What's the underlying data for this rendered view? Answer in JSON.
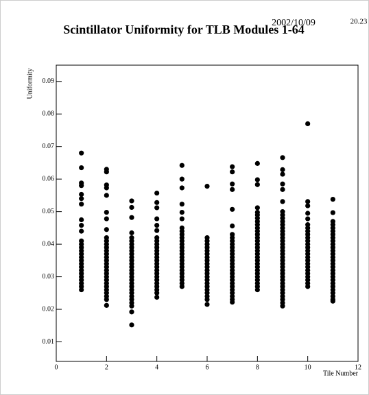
{
  "chart_data": {
    "type": "scatter",
    "title": "Scintillator Uniformity for TLB Modules 1-64",
    "date": "2002/10/09",
    "time": "20.23",
    "y_label": "Uniformity",
    "x_label": "Tile Number",
    "color": "#000000",
    "xlim": [
      0,
      12
    ],
    "xticks": [
      0,
      2,
      4,
      6,
      8,
      10,
      12
    ],
    "ylim": [
      0.004,
      0.095
    ],
    "yticks": [
      0.01,
      0.02,
      0.03,
      0.04,
      0.05,
      0.06,
      0.07,
      0.08,
      0.09
    ],
    "series": [
      {
        "x": 1,
        "values": [
          0.068,
          0.0635,
          0.0588,
          0.058,
          0.0553,
          0.054,
          0.0523,
          0.0475,
          0.0458,
          0.044,
          0.041,
          0.04,
          0.039,
          0.038,
          0.037,
          0.036,
          0.035,
          0.034,
          0.033,
          0.032,
          0.031,
          0.03,
          0.029,
          0.028,
          0.027,
          0.026
        ]
      },
      {
        "x": 2,
        "values": [
          0.063,
          0.0622,
          0.0582,
          0.0573,
          0.055,
          0.0498,
          0.0478,
          0.0445,
          0.042,
          0.041,
          0.04,
          0.039,
          0.038,
          0.037,
          0.036,
          0.035,
          0.034,
          0.033,
          0.032,
          0.031,
          0.03,
          0.029,
          0.028,
          0.027,
          0.026,
          0.025,
          0.024,
          0.023,
          0.0212
        ]
      },
      {
        "x": 3,
        "values": [
          0.0533,
          0.0513,
          0.0482,
          0.0435,
          0.042,
          0.041,
          0.04,
          0.039,
          0.038,
          0.037,
          0.036,
          0.035,
          0.034,
          0.033,
          0.032,
          0.031,
          0.03,
          0.029,
          0.028,
          0.027,
          0.026,
          0.025,
          0.024,
          0.023,
          0.022,
          0.021,
          0.0192,
          0.0152
        ]
      },
      {
        "x": 4,
        "values": [
          0.0557,
          0.0528,
          0.0512,
          0.0478,
          0.0458,
          0.0442,
          0.042,
          0.041,
          0.04,
          0.039,
          0.038,
          0.037,
          0.036,
          0.035,
          0.034,
          0.033,
          0.032,
          0.031,
          0.03,
          0.029,
          0.028,
          0.027,
          0.026,
          0.025,
          0.0237
        ]
      },
      {
        "x": 5,
        "values": [
          0.0642,
          0.06,
          0.0573,
          0.0523,
          0.0498,
          0.0478,
          0.045,
          0.044,
          0.043,
          0.042,
          0.041,
          0.04,
          0.039,
          0.038,
          0.037,
          0.036,
          0.035,
          0.034,
          0.033,
          0.032,
          0.031,
          0.03,
          0.029,
          0.028,
          0.027
        ]
      },
      {
        "x": 6,
        "values": [
          0.0578,
          0.042,
          0.041,
          0.04,
          0.039,
          0.038,
          0.037,
          0.036,
          0.035,
          0.034,
          0.033,
          0.032,
          0.031,
          0.03,
          0.029,
          0.028,
          0.027,
          0.026,
          0.025,
          0.024,
          0.023,
          0.0215
        ]
      },
      {
        "x": 7,
        "values": [
          0.0638,
          0.0622,
          0.0585,
          0.0568,
          0.0507,
          0.0456,
          0.043,
          0.042,
          0.041,
          0.04,
          0.039,
          0.038,
          0.037,
          0.036,
          0.035,
          0.034,
          0.033,
          0.032,
          0.031,
          0.03,
          0.029,
          0.028,
          0.027,
          0.026,
          0.025,
          0.024,
          0.023,
          0.0222
        ]
      },
      {
        "x": 8,
        "values": [
          0.0648,
          0.0598,
          0.0583,
          0.0512,
          0.0498,
          0.049,
          0.048,
          0.047,
          0.046,
          0.045,
          0.044,
          0.043,
          0.042,
          0.041,
          0.04,
          0.039,
          0.038,
          0.037,
          0.036,
          0.035,
          0.034,
          0.033,
          0.032,
          0.031,
          0.03,
          0.029,
          0.028,
          0.027,
          0.026
        ]
      },
      {
        "x": 9,
        "values": [
          0.0666,
          0.0629,
          0.0615,
          0.0585,
          0.0568,
          0.0531,
          0.05,
          0.049,
          0.048,
          0.047,
          0.046,
          0.045,
          0.044,
          0.043,
          0.042,
          0.041,
          0.04,
          0.039,
          0.038,
          0.037,
          0.036,
          0.035,
          0.034,
          0.033,
          0.032,
          0.031,
          0.03,
          0.029,
          0.028,
          0.027,
          0.026,
          0.025,
          0.024,
          0.023,
          0.022,
          0.021
        ]
      },
      {
        "x": 10,
        "values": [
          0.077,
          0.0531,
          0.0518,
          0.0495,
          0.0478,
          0.046,
          0.045,
          0.044,
          0.043,
          0.042,
          0.041,
          0.04,
          0.039,
          0.038,
          0.037,
          0.036,
          0.035,
          0.034,
          0.033,
          0.032,
          0.031,
          0.03,
          0.029,
          0.028,
          0.027
        ]
      },
      {
        "x": 11,
        "values": [
          0.0538,
          0.0497,
          0.047,
          0.046,
          0.045,
          0.044,
          0.043,
          0.042,
          0.041,
          0.04,
          0.039,
          0.038,
          0.037,
          0.036,
          0.035,
          0.034,
          0.033,
          0.032,
          0.031,
          0.03,
          0.029,
          0.028,
          0.027,
          0.026,
          0.025,
          0.024,
          0.023,
          0.0225
        ]
      }
    ]
  }
}
